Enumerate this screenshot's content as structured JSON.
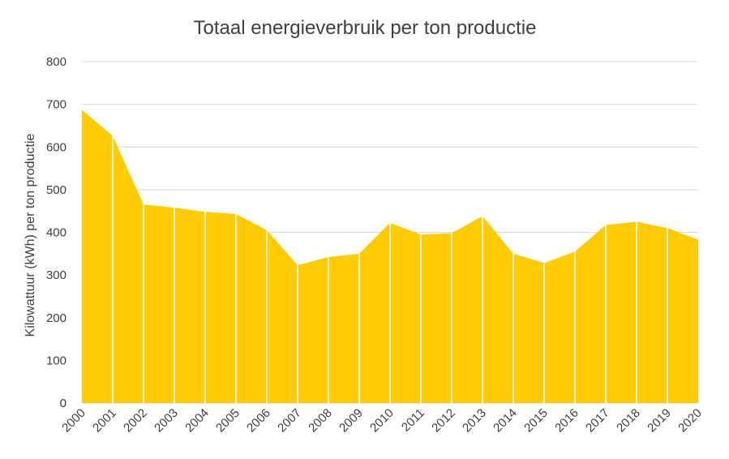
{
  "chart_data": {
    "type": "area",
    "title": "Totaal energieverbruik per ton productie",
    "xlabel": "",
    "ylabel": "Kilowattuur (kWh) per ton productie",
    "categories": [
      "2000",
      "2001",
      "2002",
      "2003",
      "2004",
      "2005",
      "2006",
      "2007",
      "2008",
      "2009",
      "2010",
      "2011",
      "2012",
      "2013",
      "2014",
      "2015",
      "2016",
      "2017",
      "2018",
      "2019",
      "2020"
    ],
    "values": [
      687,
      626,
      465,
      458,
      448,
      443,
      405,
      323,
      342,
      350,
      422,
      395,
      398,
      438,
      350,
      328,
      355,
      417,
      425,
      410,
      383
    ],
    "ylim": [
      0,
      800
    ],
    "yticks": [
      "0",
      "100",
      "200",
      "300",
      "400",
      "500",
      "600",
      "700",
      "800"
    ],
    "grid": true,
    "legend": "none",
    "colors": {
      "fill": "#FFCB05",
      "grid": "#D9D9D9",
      "text": "#404040"
    }
  }
}
